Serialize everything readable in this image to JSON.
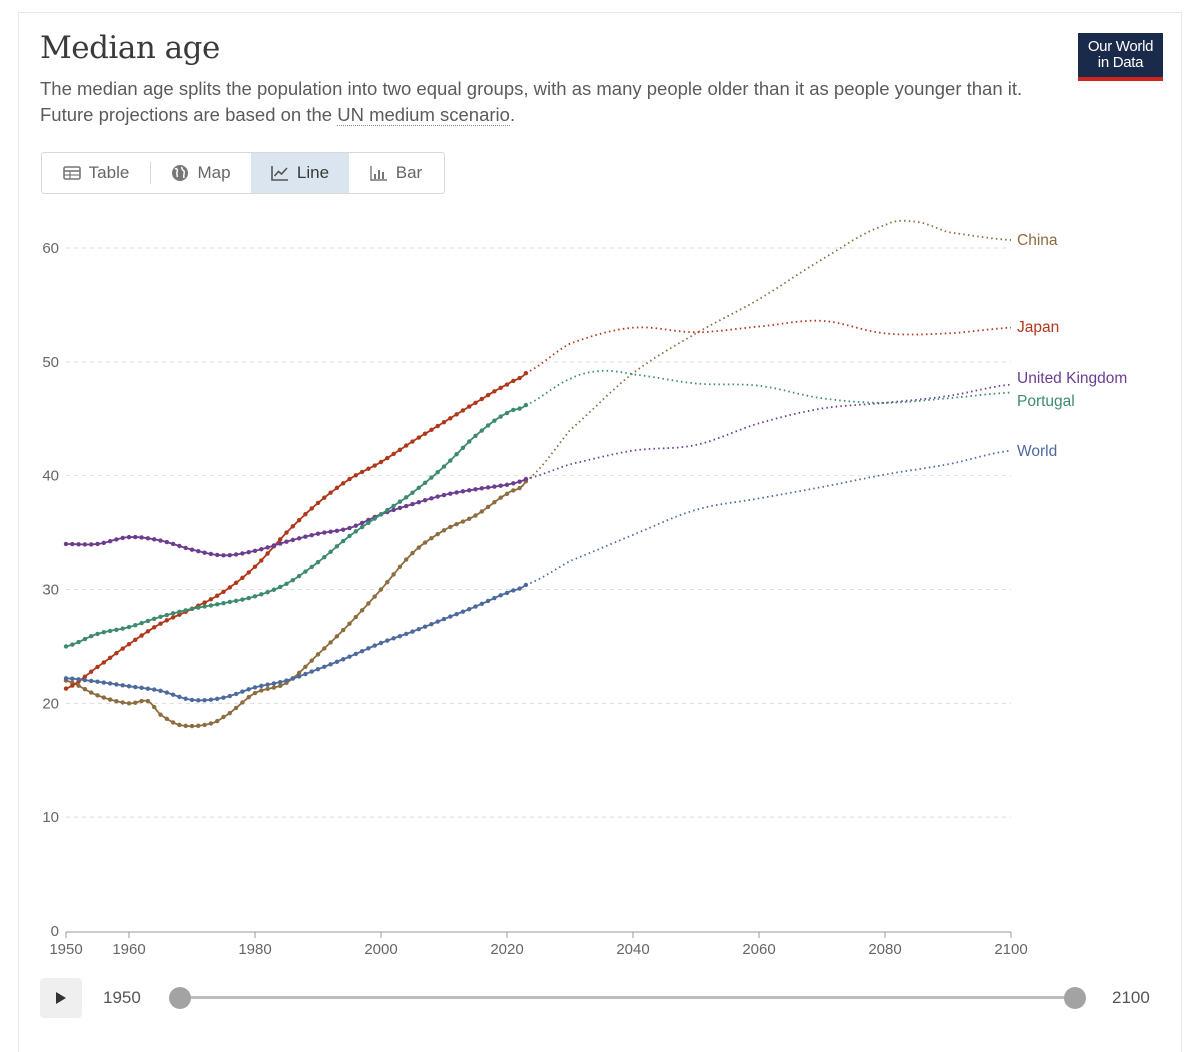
{
  "header": {
    "title": "Median age",
    "subtitle_before": "The median age splits the population into two equal groups, with as many people older than it as people younger than it. Future projections are based on the ",
    "subtitle_link": "UN medium scenario",
    "subtitle_after": ".",
    "logo_line1": "Our World",
    "logo_line2": "in Data"
  },
  "tabs": [
    {
      "label": "Table",
      "icon": "table-icon",
      "active": false
    },
    {
      "label": "Map",
      "icon": "globe-icon",
      "active": false
    },
    {
      "label": "Line",
      "icon": "line-chart-icon",
      "active": true
    },
    {
      "label": "Bar",
      "icon": "bar-chart-icon",
      "active": false
    }
  ],
  "timeline": {
    "start_label": "1950",
    "end_label": "2100",
    "start_value": 1950,
    "end_value": 2100
  },
  "chart_data": {
    "type": "line",
    "title": "Median age",
    "xlim": [
      1950,
      2100
    ],
    "ylim": [
      0,
      60
    ],
    "x_ticks": [
      1950,
      1960,
      1980,
      2000,
      2020,
      2040,
      2060,
      2080,
      2100
    ],
    "y_ticks": [
      0,
      10,
      20,
      30,
      40,
      50,
      60
    ],
    "grid": "horizontal dashed",
    "observed_until": 2023,
    "projection_style": "dotted",
    "series": [
      {
        "name": "China",
        "color": "#8c6d3f",
        "points": [
          [
            1950,
            22.0
          ],
          [
            1955,
            20.7
          ],
          [
            1960,
            20.0
          ],
          [
            1963,
            20.2
          ],
          [
            1965,
            19.0
          ],
          [
            1968,
            18.1
          ],
          [
            1972,
            18.1
          ],
          [
            1975,
            18.8
          ],
          [
            1980,
            20.9
          ],
          [
            1985,
            21.8
          ],
          [
            1990,
            24.3
          ],
          [
            1995,
            27.0
          ],
          [
            2000,
            30.0
          ],
          [
            2005,
            33.2
          ],
          [
            2010,
            35.2
          ],
          [
            2015,
            36.5
          ],
          [
            2020,
            38.4
          ],
          [
            2023,
            39.5
          ],
          [
            2030,
            44.0
          ],
          [
            2040,
            49.0
          ],
          [
            2050,
            52.5
          ],
          [
            2060,
            55.5
          ],
          [
            2070,
            59.0
          ],
          [
            2080,
            62.0
          ],
          [
            2085,
            62.3
          ],
          [
            2090,
            61.4
          ],
          [
            2100,
            60.7
          ]
        ]
      },
      {
        "name": "Japan",
        "color": "#b0381a",
        "points": [
          [
            1950,
            21.3
          ],
          [
            1955,
            23.2
          ],
          [
            1960,
            25.2
          ],
          [
            1965,
            27.0
          ],
          [
            1970,
            28.3
          ],
          [
            1975,
            29.8
          ],
          [
            1980,
            32.0
          ],
          [
            1985,
            35.0
          ],
          [
            1990,
            37.6
          ],
          [
            1995,
            39.7
          ],
          [
            2000,
            41.2
          ],
          [
            2005,
            43.0
          ],
          [
            2010,
            44.7
          ],
          [
            2015,
            46.4
          ],
          [
            2020,
            48.0
          ],
          [
            2023,
            49.0
          ],
          [
            2030,
            51.6
          ],
          [
            2040,
            53.0
          ],
          [
            2050,
            52.6
          ],
          [
            2060,
            53.1
          ],
          [
            2070,
            53.6
          ],
          [
            2080,
            52.5
          ],
          [
            2090,
            52.5
          ],
          [
            2100,
            53.0
          ]
        ]
      },
      {
        "name": "United Kingdom",
        "color": "#6b3d8f",
        "points": [
          [
            1950,
            34.0
          ],
          [
            1955,
            34.0
          ],
          [
            1960,
            34.6
          ],
          [
            1965,
            34.3
          ],
          [
            1970,
            33.5
          ],
          [
            1975,
            33.0
          ],
          [
            1980,
            33.4
          ],
          [
            1985,
            34.2
          ],
          [
            1990,
            34.9
          ],
          [
            1995,
            35.4
          ],
          [
            2000,
            36.6
          ],
          [
            2005,
            37.5
          ],
          [
            2010,
            38.3
          ],
          [
            2015,
            38.8
          ],
          [
            2020,
            39.2
          ],
          [
            2023,
            39.7
          ],
          [
            2030,
            41.0
          ],
          [
            2040,
            42.2
          ],
          [
            2050,
            42.7
          ],
          [
            2060,
            44.6
          ],
          [
            2070,
            45.9
          ],
          [
            2080,
            46.4
          ],
          [
            2090,
            47.0
          ],
          [
            2100,
            48.0
          ]
        ]
      },
      {
        "name": "Portugal",
        "color": "#3d8a6e",
        "points": [
          [
            1950,
            25.0
          ],
          [
            1955,
            26.1
          ],
          [
            1960,
            26.7
          ],
          [
            1965,
            27.6
          ],
          [
            1970,
            28.3
          ],
          [
            1975,
            28.8
          ],
          [
            1980,
            29.4
          ],
          [
            1985,
            30.5
          ],
          [
            1990,
            32.4
          ],
          [
            1995,
            34.7
          ],
          [
            2000,
            36.6
          ],
          [
            2005,
            38.5
          ],
          [
            2010,
            40.8
          ],
          [
            2015,
            43.5
          ],
          [
            2020,
            45.5
          ],
          [
            2023,
            46.2
          ],
          [
            2030,
            48.5
          ],
          [
            2035,
            49.2
          ],
          [
            2040,
            48.9
          ],
          [
            2050,
            48.1
          ],
          [
            2060,
            47.9
          ],
          [
            2070,
            46.8
          ],
          [
            2080,
            46.4
          ],
          [
            2090,
            46.8
          ],
          [
            2100,
            47.3
          ]
        ]
      },
      {
        "name": "World",
        "color": "#4c6a9c",
        "points": [
          [
            1950,
            22.2
          ],
          [
            1955,
            21.9
          ],
          [
            1960,
            21.5
          ],
          [
            1965,
            21.1
          ],
          [
            1970,
            20.3
          ],
          [
            1975,
            20.5
          ],
          [
            1980,
            21.4
          ],
          [
            1985,
            22.0
          ],
          [
            1990,
            23.0
          ],
          [
            1995,
            24.1
          ],
          [
            2000,
            25.3
          ],
          [
            2005,
            26.3
          ],
          [
            2010,
            27.4
          ],
          [
            2015,
            28.5
          ],
          [
            2020,
            29.7
          ],
          [
            2023,
            30.4
          ],
          [
            2030,
            32.5
          ],
          [
            2040,
            34.8
          ],
          [
            2050,
            37.0
          ],
          [
            2060,
            38.0
          ],
          [
            2070,
            39.0
          ],
          [
            2080,
            40.1
          ],
          [
            2090,
            41.0
          ],
          [
            2100,
            42.2
          ]
        ]
      }
    ]
  }
}
